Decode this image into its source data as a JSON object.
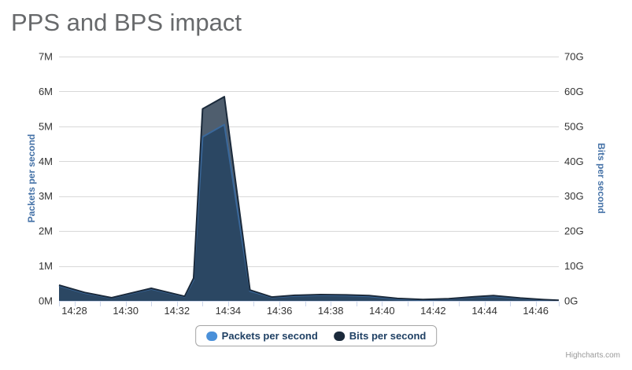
{
  "title": "PPS and BPS impact",
  "credit": "Highcharts.com",
  "legend": {
    "items": [
      {
        "label": "Packets per second",
        "color": "#4A90D9"
      },
      {
        "label": "Bits per second",
        "color": "#1B2A3B"
      }
    ]
  },
  "colors": {
    "grid": "#D8D8D8",
    "axis_line": "#CCD6EB",
    "tick_mark": "#CCD6EB",
    "tick_label": "#333333",
    "axis_title": "#4572A7",
    "title": "#67696B",
    "legend_text": "#1F4064",
    "legend_border": "#A5A5A5",
    "credit": "#999999"
  },
  "chart_data": {
    "type": "area",
    "title": "PPS and BPS impact",
    "grid": "horizontal-on",
    "legend_position": "bottom-center",
    "x_axis": {
      "unit": "time (HH:MM)",
      "range_minutes_after_1400": [
        27.4,
        46.9
      ],
      "tick_minutes": [
        27.4,
        28,
        29,
        30,
        31,
        32,
        33,
        34,
        35,
        36,
        37,
        38,
        39,
        40,
        41,
        42,
        43,
        44,
        45,
        46,
        46.9
      ],
      "labeled_ticks": [
        {
          "minute": 28,
          "label": "14:28"
        },
        {
          "minute": 30,
          "label": "14:30"
        },
        {
          "minute": 32,
          "label": "14:32"
        },
        {
          "minute": 34,
          "label": "14:34"
        },
        {
          "minute": 36,
          "label": "14:36"
        },
        {
          "minute": 38,
          "label": "14:38"
        },
        {
          "minute": 40,
          "label": "14:40"
        },
        {
          "minute": 42,
          "label": "14:42"
        },
        {
          "minute": 44,
          "label": "14:44"
        },
        {
          "minute": 46,
          "label": "14:46"
        }
      ]
    },
    "y_axis_left": {
      "title": "Packets per second",
      "ticks": [
        "0M",
        "1M",
        "2M",
        "3M",
        "4M",
        "5M",
        "6M",
        "7M"
      ],
      "min": 0,
      "max": 7,
      "unit": "M"
    },
    "y_axis_right": {
      "title": "Bits per second",
      "ticks": [
        "0G",
        "10G",
        "20G",
        "30G",
        "40G",
        "50G",
        "60G",
        "70G"
      ],
      "min": 0,
      "max": 70,
      "unit": "G"
    },
    "series": [
      {
        "name": "Packets per second",
        "yaxis": "left",
        "unit": "Mpps",
        "color": "#4A90D9",
        "line_color": "#3A689B",
        "fill_color": "#2B4763",
        "x_minutes": [
          27.4,
          28.4,
          29.45,
          31.0,
          32.3,
          32.65,
          33.0,
          33.85,
          34.85,
          35.7,
          36.6,
          37.6,
          38.6,
          39.5,
          40.6,
          41.6,
          42.6,
          43.6,
          44.35,
          45.4,
          46.3,
          46.9
        ],
        "values": [
          0.43,
          0.22,
          0.08,
          0.34,
          0.12,
          0.6,
          4.7,
          5.05,
          0.28,
          0.1,
          0.14,
          0.16,
          0.15,
          0.13,
          0.05,
          0.03,
          0.05,
          0.11,
          0.13,
          0.07,
          0.03,
          0.01
        ]
      },
      {
        "name": "Bits per second",
        "yaxis": "right",
        "unit": "Gbps",
        "color": "#1B2A3B",
        "line_color": "#1B2A3B",
        "fill_color": "#4F5E6E",
        "x_minutes": [
          27.4,
          28.4,
          29.45,
          31.0,
          32.3,
          32.65,
          33.0,
          33.85,
          34.85,
          35.7,
          36.6,
          37.6,
          38.6,
          39.5,
          40.6,
          41.6,
          42.6,
          43.6,
          44.35,
          45.4,
          46.3,
          46.9
        ],
        "values": [
          4.5,
          2.4,
          0.9,
          3.6,
          1.3,
          6.5,
          55.0,
          58.5,
          3.1,
          1.1,
          1.6,
          1.8,
          1.7,
          1.5,
          0.7,
          0.4,
          0.6,
          1.2,
          1.5,
          0.8,
          0.35,
          0.15
        ]
      }
    ]
  }
}
